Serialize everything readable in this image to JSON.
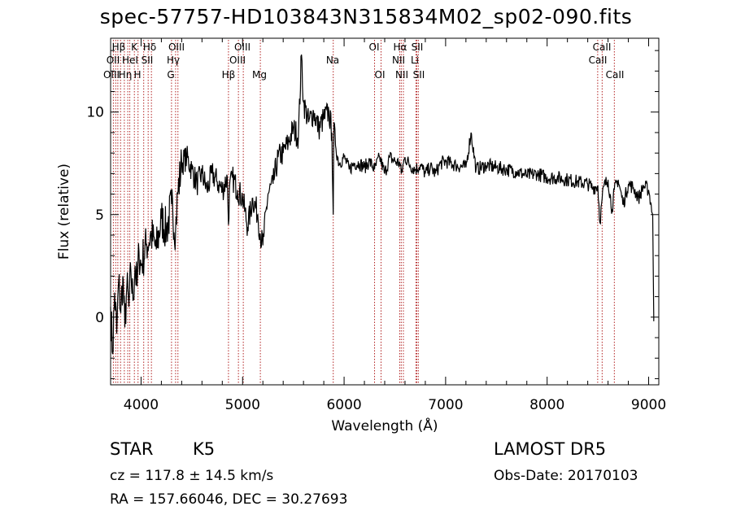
{
  "chart_data": {
    "type": "line",
    "title": "spec-57757-HD103843N315834M02_sp02-090.fits",
    "xlabel": "Wavelength (Å)",
    "ylabel": "Flux (relative)",
    "xlim": [
      3700,
      9100
    ],
    "ylim": [
      -3.3,
      13.6
    ],
    "xticks": [
      4000,
      5000,
      6000,
      7000,
      8000,
      9000
    ],
    "yticks": [
      0,
      5,
      10
    ],
    "grid": false,
    "series": [
      {
        "x": [
          3700,
          3720,
          3740,
          3760,
          3780,
          3800,
          3820,
          3840,
          3860,
          3880,
          3900,
          3920,
          3940,
          3960,
          3980,
          4000,
          4050,
          4100,
          4150,
          4200,
          4250,
          4300,
          4340,
          4360,
          4400,
          4450,
          4500,
          4550,
          4600,
          4650,
          4700,
          4750,
          4800,
          4850,
          4861,
          4870,
          4900,
          4950,
          5000,
          5050,
          5100,
          5150,
          5175,
          5200,
          5250,
          5300,
          5350,
          5400,
          5450,
          5500,
          5550,
          5580,
          5600,
          5650,
          5700,
          5750,
          5800,
          5850,
          5880,
          5893,
          5900,
          5920,
          5950,
          6000,
          6050,
          6100,
          6150,
          6200,
          6250,
          6300,
          6350,
          6400,
          6450,
          6500,
          6550,
          6563,
          6600,
          6650,
          6700,
          6750,
          6800,
          6850,
          6900,
          6950,
          7000,
          7100,
          7200,
          7250,
          7300,
          7400,
          7500,
          7600,
          7700,
          7800,
          7900,
          8000,
          8100,
          8200,
          8300,
          8400,
          8450,
          8500,
          8520,
          8542,
          8560,
          8600,
          8640,
          8662,
          8700,
          8750,
          8800,
          8850,
          8900,
          8950,
          9000,
          9020,
          9040,
          9050
        ],
        "y": [
          0.5,
          -1.8,
          1.2,
          -0.8,
          1.8,
          0.2,
          2.0,
          -0.5,
          1.5,
          0.5,
          2.2,
          0.8,
          2.5,
          1.5,
          3.2,
          2.5,
          3.5,
          4.0,
          3.3,
          4.8,
          4.2,
          5.5,
          4.2,
          6.0,
          7.5,
          7.8,
          7.2,
          6.5,
          7.0,
          6.2,
          7.0,
          6.6,
          6.2,
          6.8,
          4.5,
          6.2,
          6.8,
          6.2,
          5.8,
          4.4,
          5.8,
          5.0,
          4.0,
          3.5,
          6.0,
          6.5,
          7.8,
          8.0,
          8.5,
          9.2,
          8.8,
          12.8,
          10.5,
          9.5,
          10.0,
          9.2,
          9.7,
          10.0,
          9.0,
          5.0,
          9.5,
          8.2,
          7.5,
          7.8,
          7.2,
          7.5,
          7.5,
          7.3,
          7.6,
          7.2,
          7.8,
          7.0,
          7.8,
          7.6,
          7.5,
          7.0,
          7.8,
          7.4,
          7.2,
          7.4,
          7.0,
          7.3,
          7.0,
          7.5,
          7.6,
          7.4,
          7.3,
          9.0,
          7.2,
          7.4,
          7.3,
          7.2,
          7.1,
          6.9,
          7.0,
          6.8,
          6.8,
          6.7,
          6.6,
          6.5,
          6.3,
          6.4,
          4.6,
          5.8,
          6.4,
          6.7,
          5.2,
          6.2,
          6.7,
          5.5,
          6.5,
          6.3,
          5.8,
          6.4,
          6.2,
          5.6,
          5.0,
          0.0
        ]
      }
    ],
    "lines": [
      {
        "x": 3727,
        "label": "OII"
      },
      {
        "x": 3750,
        "label": "H11"
      },
      {
        "x": 3771,
        "label": "H10"
      },
      {
        "x": 3798,
        "label": "Hη"
      },
      {
        "x": 3835,
        "label": "Hη"
      },
      {
        "x": 3869,
        "label": "OIII"
      },
      {
        "x": 3889,
        "label": "Hζ"
      },
      {
        "x": 3934,
        "label": "K"
      },
      {
        "x": 3970,
        "label": "H"
      },
      {
        "x": 4026,
        "label": "HeI"
      },
      {
        "x": 4070,
        "label": "SII"
      },
      {
        "x": 4102,
        "label": "Hδ"
      },
      {
        "x": 4300,
        "label": "G"
      },
      {
        "x": 4340,
        "label": "Hγ"
      },
      {
        "x": 4363,
        "label": "OIII"
      },
      {
        "x": 4861,
        "label": "Hβ"
      },
      {
        "x": 4959,
        "label": "OIII"
      },
      {
        "x": 5007,
        "label": "OIII"
      },
      {
        "x": 5175,
        "label": "Mg"
      },
      {
        "x": 5893,
        "label": "Na"
      },
      {
        "x": 6300,
        "label": "OI"
      },
      {
        "x": 6364,
        "label": "OI"
      },
      {
        "x": 6548,
        "label": "NII"
      },
      {
        "x": 6563,
        "label": "Hα"
      },
      {
        "x": 6584,
        "label": "NII"
      },
      {
        "x": 6708,
        "label": "Li"
      },
      {
        "x": 6716,
        "label": "SII"
      },
      {
        "x": 6731,
        "label": "SII"
      },
      {
        "x": 8498,
        "label": "CaII"
      },
      {
        "x": 8542,
        "label": "CaII"
      },
      {
        "x": 8662,
        "label": "CaII"
      }
    ],
    "line_color": "#b22222"
  },
  "labels": {
    "hbeta_top": "Hβ",
    "k": "K",
    "hdelta": "Hδ",
    "oiii_a": "OIII",
    "oiii_b": "OIII",
    "oi_a": "OI",
    "halpha": "Hα",
    "sii_a": "SII",
    "caii_a": "CaII",
    "oii": "OII",
    "hei": "HeI",
    "sii_b": "SII",
    "hgamma": "Hγ",
    "oiii_c": "OIII",
    "na": "Na",
    "nii_a": "NII",
    "li": "Li",
    "caii_b": "CaII",
    "oiii_d": "OIII",
    "h_eta": "Hη",
    "h": "H",
    "g": "G",
    "hbeta": "Hβ",
    "mg": "Mg",
    "oi_b": "OI",
    "nii_b": "NII",
    "sii_c": "SII",
    "caii_c": "CaII"
  },
  "info": {
    "object_class": "STAR",
    "subclass": "K5",
    "survey": "LAMOST DR5",
    "cz": "cz = 117.8 ± 14.5 km/s",
    "obs_date": "Obs-Date: 20170103",
    "coords": "RA = 157.66046, DEC =  30.27693"
  }
}
